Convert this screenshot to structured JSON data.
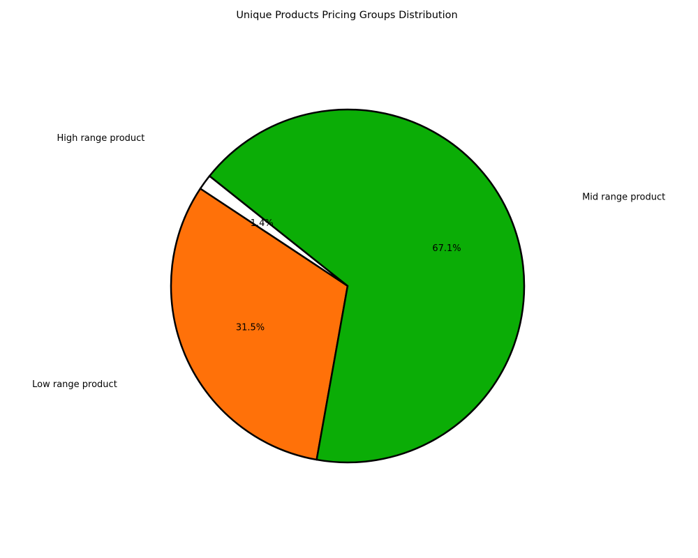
{
  "chart_data": {
    "type": "pie",
    "title": "Unique Products Pricing Groups Distribution",
    "slices": [
      {
        "label": "Low range product",
        "percent": 31.5,
        "percent_label": "31.5%",
        "color": "#ff7109"
      },
      {
        "label": "Mid range product",
        "percent": 67.1,
        "percent_label": "67.1%",
        "color": "#0bad06"
      },
      {
        "label": "High range product",
        "percent": 1.4,
        "percent_label": "1.4%",
        "color": "#ffffff"
      }
    ],
    "edge_color": "#000000"
  }
}
